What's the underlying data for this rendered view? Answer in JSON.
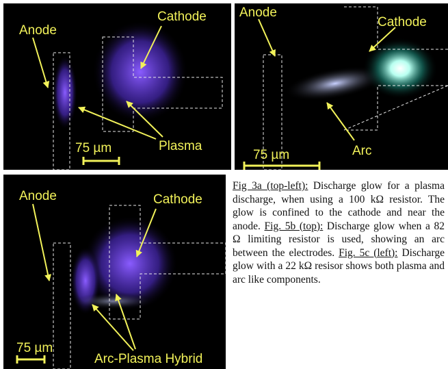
{
  "panels": [
    {
      "labels": {
        "anode": "Anode",
        "cathode": "Cathode",
        "feature": "Plasma",
        "scale": "75 µm"
      }
    },
    {
      "labels": {
        "anode": "Anode",
        "cathode": "Cathode",
        "feature": "Arc",
        "scale": "75 µm"
      }
    },
    {
      "labels": {
        "anode": "Anode",
        "cathode": "Cathode",
        "feature": "Arc-Plasma Hybrid",
        "scale": "75 µm"
      }
    }
  ],
  "caption": [
    {
      "label": "Fig 3a (top-left):",
      "text": " Discharge glow for a plasma discharge, when using a 100 kΩ resistor. The glow is confined to the cathode and near the anode. "
    },
    {
      "label": "Fig. 5b (top):",
      "text": " Discharge glow when a 82 Ω limiting resistor is used, showing an arc between the electrodes. "
    },
    {
      "label": "Fig. 5c (left):",
      "text": " Discharge glow with a 22 kΩ resisor shows both plasma and arc like components."
    }
  ]
}
